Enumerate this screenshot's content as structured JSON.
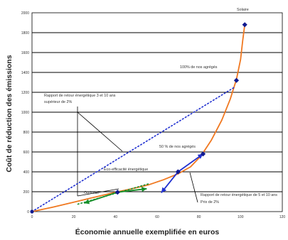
{
  "chart_data": {
    "type": "line",
    "xlabel": "Économie annuelle exemplifiée en euros",
    "ylabel": "Coût de réduction des émissions",
    "x_ticks": [
      "0",
      "20",
      "40",
      "60",
      "80",
      "100",
      "120"
    ],
    "y_ticks": [
      "0",
      "200",
      "400",
      "600",
      "800",
      "1000",
      "1200",
      "1400",
      "1600",
      "1800",
      "2000"
    ],
    "xlim": [
      0,
      120
    ],
    "ylim": [
      0,
      2000
    ],
    "grid": "horizontal",
    "colors": {
      "curve": "#f07820",
      "blue": "#1f2fd0",
      "green": "#168f2b",
      "point": "#101a90",
      "grid": "#000000"
    },
    "series": [
      {
        "style": "solid",
        "color": "#f07820",
        "points": [
          [
            0,
            0
          ],
          [
            10,
            45
          ],
          [
            20,
            95
          ],
          [
            30,
            145
          ],
          [
            40,
            195
          ],
          [
            48,
            230
          ],
          [
            56,
            270
          ],
          [
            63,
            320
          ],
          [
            70,
            380
          ],
          [
            76,
            450
          ],
          [
            81,
            560
          ],
          [
            86,
            720
          ],
          [
            91,
            920
          ],
          [
            95,
            1130
          ],
          [
            98,
            1330
          ],
          [
            100,
            1530
          ],
          [
            101,
            1720
          ],
          [
            102,
            1880
          ]
        ]
      },
      {
        "style": "dotted",
        "color": "#1f2fd0",
        "points": [
          [
            0,
            0
          ],
          [
            97,
            1250
          ]
        ]
      },
      {
        "style": "dotted",
        "color": "#168f2b",
        "points": [
          [
            22,
            75
          ],
          [
            56,
            280
          ]
        ]
      }
    ],
    "markers": [
      [
        102,
        1880
      ],
      [
        98,
        1320
      ],
      [
        82,
        580
      ],
      [
        70,
        400
      ],
      [
        41,
        195
      ]
    ],
    "arrows": [
      {
        "color": "#1f2fd0",
        "from": [
          70,
          400
        ],
        "to": [
          82,
          580
        ]
      },
      {
        "color": "#1f2fd0",
        "from": [
          70,
          400
        ],
        "to": [
          62,
          190
        ]
      },
      {
        "color": "#168f2b",
        "from": [
          41,
          195
        ],
        "to": [
          55,
          230
        ]
      },
      {
        "color": "#168f2b",
        "from": [
          41,
          195
        ],
        "to": [
          25,
          85
        ]
      }
    ],
    "annotations": {
      "top": "Solaire",
      "upper_label": "100% de nos agrégés",
      "mid_label": "50 % de nos agrégés",
      "left_block_1": "Rapport de retour énergétique 3 et 10 ans",
      "left_block_2": "supérieur de 2%",
      "center_label": "Éco-efficacité énergétique",
      "bottom_left": "Optimisé",
      "bottom_right_1": "Rapport de retour énergétique de 5 et 10 ans",
      "bottom_right_2": "Prix de 2%"
    }
  }
}
